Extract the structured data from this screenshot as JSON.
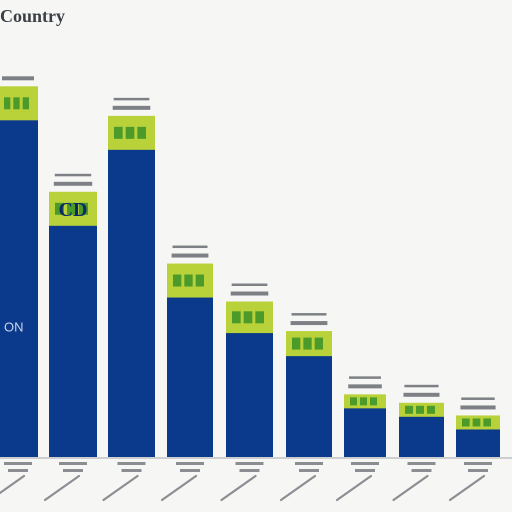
{
  "title": "Country",
  "colors": {
    "bar": "#0b3a8c",
    "label_band": "#b9d23a",
    "label_square": "#4c9a2a"
  },
  "chart_data": {
    "type": "bar",
    "title": "Country",
    "xlabel": "",
    "ylabel": "",
    "ylim": [
      0,
      100
    ],
    "grid": false,
    "legend": "none",
    "categories": [
      "",
      "",
      "",
      "",
      "",
      "",
      "",
      "",
      ""
    ],
    "values": [
      85,
      60,
      78,
      43,
      34,
      27,
      12,
      10,
      7
    ],
    "data_labels": [
      "",
      "CD",
      "",
      "",
      "",
      "",
      "",
      "",
      ""
    ],
    "bar_inner_text": [
      "ON",
      "",
      "",
      "",
      "",
      "",
      "",
      "",
      ""
    ]
  }
}
